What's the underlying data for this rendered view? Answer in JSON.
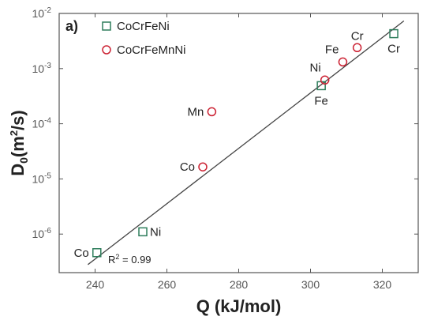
{
  "chart_data": {
    "type": "scatter",
    "panel_label": "a)",
    "xlabel": "Q (kJ/mol)",
    "ylabel": "D",
    "ylabel_subscript": "0",
    "ylabel_units_prefix": "(m",
    "ylabel_units_sup": "2",
    "ylabel_units_suffix": "/s)",
    "x_scale": "linear",
    "y_scale": "log",
    "xlim": [
      230,
      330
    ],
    "ylim": [
      2e-07,
      0.01
    ],
    "x_ticks": [
      240,
      260,
      280,
      300,
      320
    ],
    "y_ticks": [
      {
        "value": 1e-06,
        "base": "10",
        "exp": "-6"
      },
      {
        "value": 1e-05,
        "base": "10",
        "exp": "-5"
      },
      {
        "value": 0.0001,
        "base": "10",
        "exp": "-4"
      },
      {
        "value": 0.001,
        "base": "10",
        "exp": "-3"
      },
      {
        "value": 0.01,
        "base": "10",
        "exp": "-2"
      }
    ],
    "legend_position": "top-left",
    "series": [
      {
        "name": "CoCrFeNi",
        "marker": "square",
        "color": "#2e7d5b",
        "points": [
          {
            "label": "Co",
            "x": 240.5,
            "y": 4.6e-07,
            "label_side": "left"
          },
          {
            "label": "Ni",
            "x": 253.3,
            "y": 1.1e-06,
            "label_side": "right"
          },
          {
            "label": "Fe",
            "x": 303.0,
            "y": 0.00049,
            "label_side": "below"
          },
          {
            "label": "Cr",
            "x": 323.2,
            "y": 0.0043,
            "label_side": "below"
          }
        ]
      },
      {
        "name": "CoCrFeMnNi",
        "marker": "circle",
        "color": "#cc2233",
        "points": [
          {
            "label": "Mn",
            "x": 272.5,
            "y": 0.000165,
            "label_side": "left"
          },
          {
            "label": "Co",
            "x": 270.0,
            "y": 1.65e-05,
            "label_side": "left"
          },
          {
            "label": "Ni",
            "x": 304.0,
            "y": 0.00062,
            "label_side": "above-left"
          },
          {
            "label": "Fe",
            "x": 309.0,
            "y": 0.00132,
            "label_side": "above-left"
          },
          {
            "label": "Cr",
            "x": 313.0,
            "y": 0.0024,
            "label_side": "above"
          }
        ]
      }
    ],
    "fit_line": {
      "color": "#444444",
      "start": {
        "x": 238.0,
        "y": 2.8e-07
      },
      "end": {
        "x": 326.0,
        "y": 0.0073
      }
    },
    "annotation": {
      "text_prefix": "R",
      "text_sup": "2",
      "text_suffix": " = 0.99"
    }
  }
}
